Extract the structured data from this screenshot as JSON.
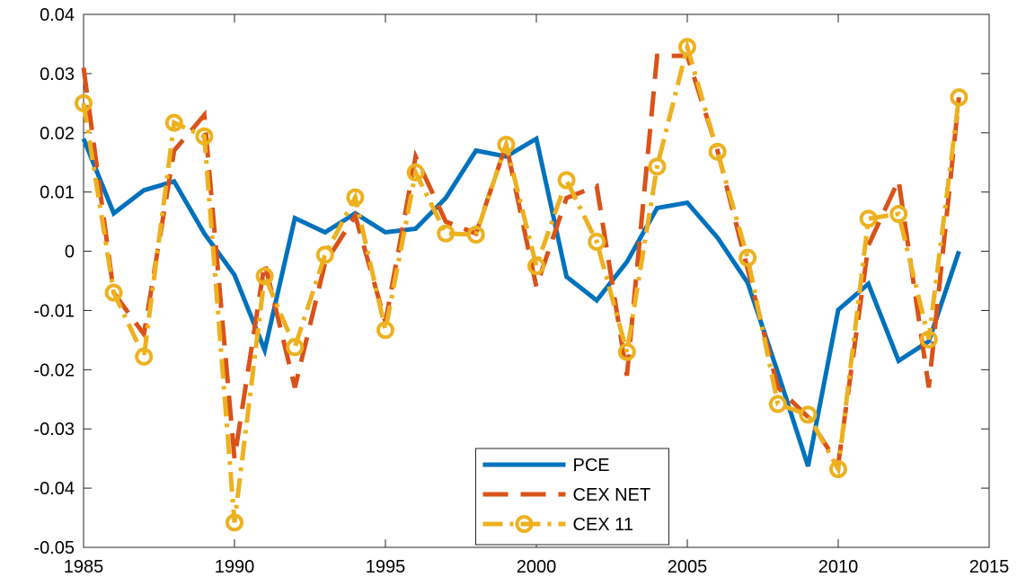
{
  "chart_data": {
    "type": "line",
    "x": [
      1985,
      1986,
      1987,
      1988,
      1989,
      1990,
      1991,
      1992,
      1993,
      1994,
      1995,
      1996,
      1997,
      1998,
      1999,
      2000,
      2001,
      2002,
      2003,
      2004,
      2005,
      2006,
      2007,
      2008,
      2009,
      2010,
      2011,
      2012,
      2013,
      2014
    ],
    "series": [
      {
        "name": "PCE",
        "color": "#0072bd",
        "linestyle": "solid",
        "marker": false,
        "values": [
          0.019,
          0.0064,
          0.0103,
          0.0118,
          0.003,
          -0.004,
          -0.0167,
          0.0056,
          0.0032,
          0.0064,
          0.0032,
          0.0038,
          0.009,
          0.017,
          0.016,
          0.019,
          -0.0043,
          -0.0083,
          -0.0018,
          0.0073,
          0.0082,
          0.0023,
          -0.0053,
          -0.0205,
          -0.0363,
          -0.0099,
          -0.0055,
          -0.0185,
          -0.0152,
          0
        ]
      },
      {
        "name": "CEX NET",
        "color": "#d95319",
        "linestyle": "dashed",
        "marker": false,
        "values": [
          0.031,
          -0.007,
          -0.014,
          0.017,
          0.023,
          -0.035,
          -0.002,
          -0.023,
          -0.002,
          0.006,
          -0.012,
          0.016,
          0.005,
          0.003,
          0.018,
          -0.006,
          0.009,
          0.011,
          -0.021,
          0.033,
          0.033,
          0.017,
          -0.003,
          -0.023,
          -0.028,
          -0.036,
          0.001,
          0.012,
          -0.023,
          0.026
        ]
      },
      {
        "name": "CEX 11",
        "color": "#edb120",
        "linestyle": "dashdot",
        "marker": true,
        "values": [
          0.025,
          -0.007,
          -0.0178,
          0.0217,
          0.0194,
          -0.0458,
          -0.0042,
          -0.0162,
          -0.0006,
          0.0091,
          -0.0133,
          0.0133,
          0.003,
          0.0028,
          0.018,
          -0.0025,
          0.012,
          0.0016,
          -0.017,
          0.0143,
          0.0345,
          0.0168,
          -0.0011,
          -0.0258,
          -0.0276,
          -0.0368,
          0.0055,
          0.0063,
          -0.0149,
          0.026
        ]
      }
    ],
    "xlim": [
      1985,
      2015
    ],
    "xticks": [
      1985,
      1990,
      1995,
      2000,
      2005,
      2010,
      2015
    ],
    "ylim": [
      -0.05,
      0.04
    ],
    "yticks": [
      -0.05,
      -0.04,
      -0.03,
      -0.02,
      -0.01,
      0,
      0.01,
      0.02,
      0.03,
      0.04
    ],
    "legend": "south"
  }
}
